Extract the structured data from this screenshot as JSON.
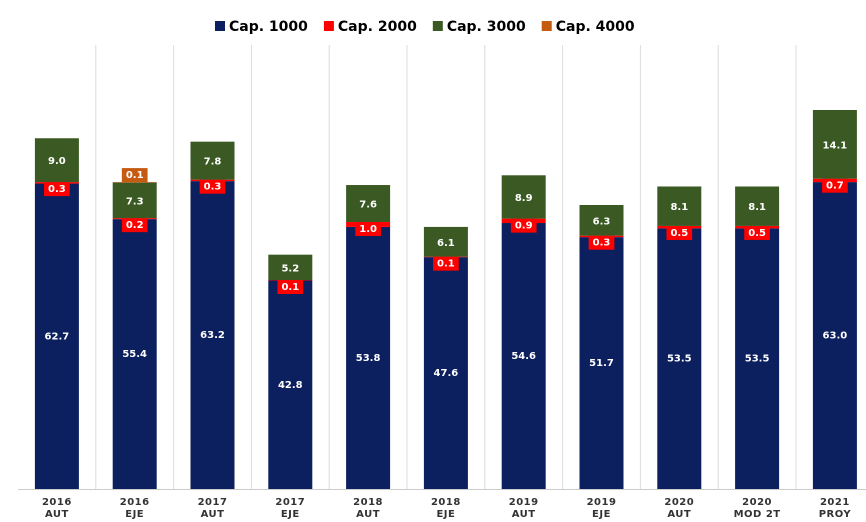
{
  "chart_data": {
    "type": "stacked_bar",
    "categories": [
      [
        "2016",
        "AUT"
      ],
      [
        "2016",
        "EJE"
      ],
      [
        "2017",
        "AUT"
      ],
      [
        "2017",
        "EJE"
      ],
      [
        "2018",
        "AUT"
      ],
      [
        "2018",
        "EJE"
      ],
      [
        "2019",
        "AUT"
      ],
      [
        "2019",
        "EJE"
      ],
      [
        "2020",
        "AUT"
      ],
      [
        "2020",
        "MOD 2T"
      ],
      [
        "2021",
        "PROY"
      ]
    ],
    "series": [
      {
        "name": "Cap. 1000",
        "color": "#0c1f5e",
        "values": [
          62.7,
          55.4,
          63.2,
          42.8,
          53.8,
          47.6,
          54.6,
          51.7,
          53.5,
          53.5,
          63.0
        ],
        "value_labels": [
          "62.7",
          "55.4",
          "63.2",
          "42.8",
          "53.8",
          "47.6",
          "54.6",
          "51.7",
          "53.5",
          "53.5",
          "63.0"
        ]
      },
      {
        "name": "Cap. 2000",
        "color": "#ff0000",
        "values": [
          0.3,
          0.2,
          0.3,
          0.1,
          1.0,
          0.1,
          0.9,
          0.3,
          0.5,
          0.5,
          0.7
        ],
        "value_labels": [
          "0.3",
          "0.2",
          "0.3",
          "0.1",
          "1.0",
          "0.1",
          "0.9",
          "0.3",
          "0.5",
          "0.5",
          "0.7"
        ]
      },
      {
        "name": "Cap. 3000",
        "color": "#3b5a23",
        "values": [
          9.0,
          7.3,
          7.8,
          5.2,
          7.6,
          6.1,
          8.9,
          6.3,
          8.1,
          8.1,
          14.1
        ],
        "value_labels": [
          "9.0",
          "7.3",
          "7.8",
          "5.2",
          "7.6",
          "6.1",
          "8.9",
          "6.3",
          "8.1",
          "8.1",
          "14.1"
        ]
      },
      {
        "name": "Cap. 4000",
        "color": "#c55a11",
        "values": [
          null,
          0.1,
          null,
          null,
          null,
          null,
          null,
          null,
          null,
          null,
          null
        ],
        "value_labels": [
          null,
          "0.1",
          null,
          null,
          null,
          null,
          null,
          null,
          null,
          null,
          null
        ]
      }
    ]
  }
}
